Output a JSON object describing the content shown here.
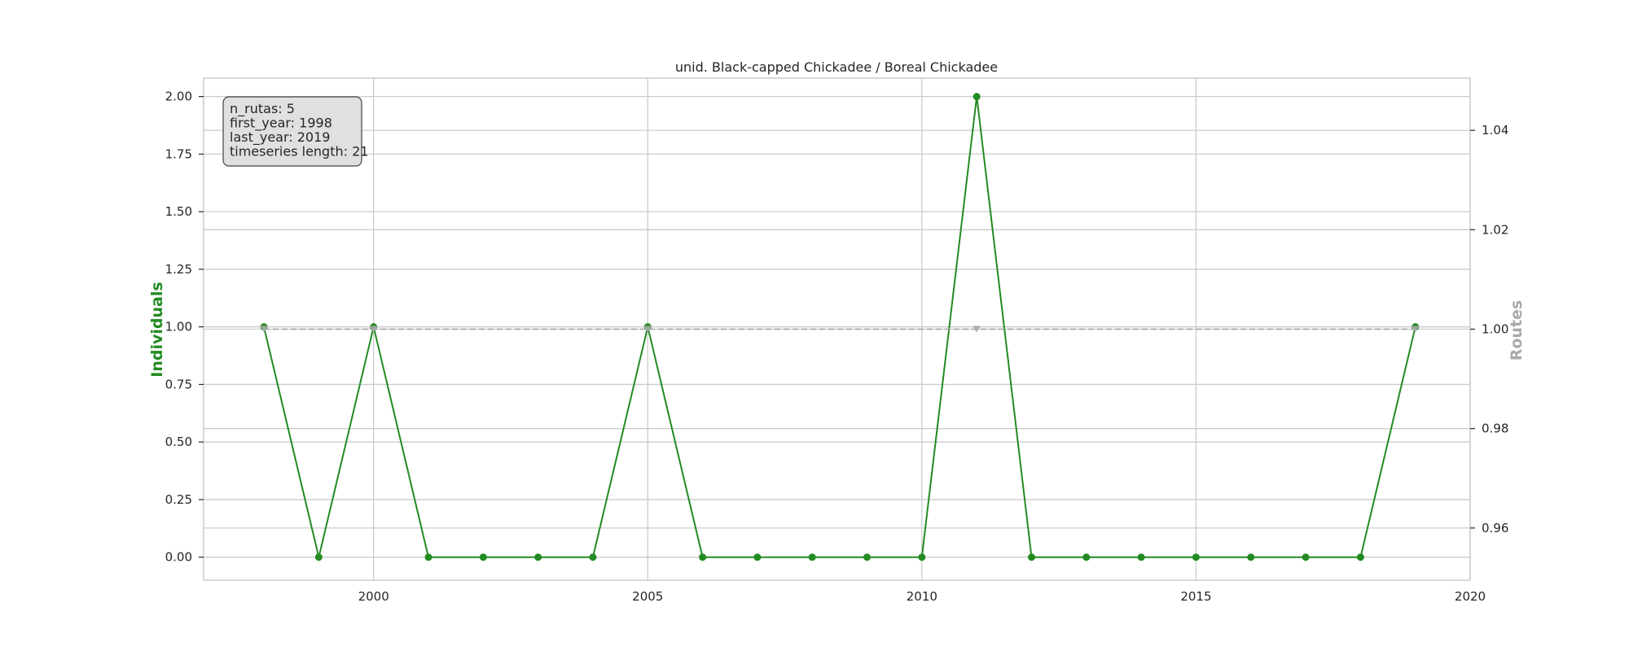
{
  "chart_data": {
    "type": "line",
    "title": "unid. Black-capped Chickadee / Boreal Chickadee",
    "xlabel": "",
    "ylabel": "Individuals",
    "y2label": "Routes",
    "xlim": [
      1996.9,
      2020
    ],
    "ylim": [
      -0.1,
      2.08
    ],
    "y2lim": [
      0.9495,
      1.0505
    ],
    "xticks": [
      2000,
      2005,
      2010,
      2015,
      2020
    ],
    "yticks": [
      0.0,
      0.25,
      0.5,
      0.75,
      1.0,
      1.25,
      1.5,
      1.75,
      2.0
    ],
    "y2ticks": [
      0.96,
      0.98,
      1.0,
      1.02,
      1.04
    ],
    "grid": true,
    "info_box": [
      "n_rutas: 5",
      "first_year: 1998",
      "last_year: 2019",
      "timeseries length: 21"
    ],
    "series": [
      {
        "axis": "left",
        "color": "#228b22",
        "style": "solid",
        "marker": "circle",
        "x": [
          1998,
          1999,
          2000,
          2001,
          2002,
          2003,
          2004,
          2005,
          2006,
          2007,
          2008,
          2009,
          2010,
          2011,
          2012,
          2013,
          2014,
          2015,
          2016,
          2017,
          2018,
          2019
        ],
        "values": [
          1,
          0,
          1,
          0,
          0,
          0,
          0,
          1,
          0,
          0,
          0,
          0,
          0,
          2,
          0,
          0,
          0,
          0,
          0,
          0,
          0,
          1
        ]
      },
      {
        "axis": "right",
        "color": "#a9a9a9",
        "style": "dashed",
        "marker": "triangle-down",
        "x": [
          1998,
          2000,
          2005,
          2011,
          2019
        ],
        "values": [
          1,
          1,
          1,
          1,
          1
        ]
      }
    ]
  }
}
